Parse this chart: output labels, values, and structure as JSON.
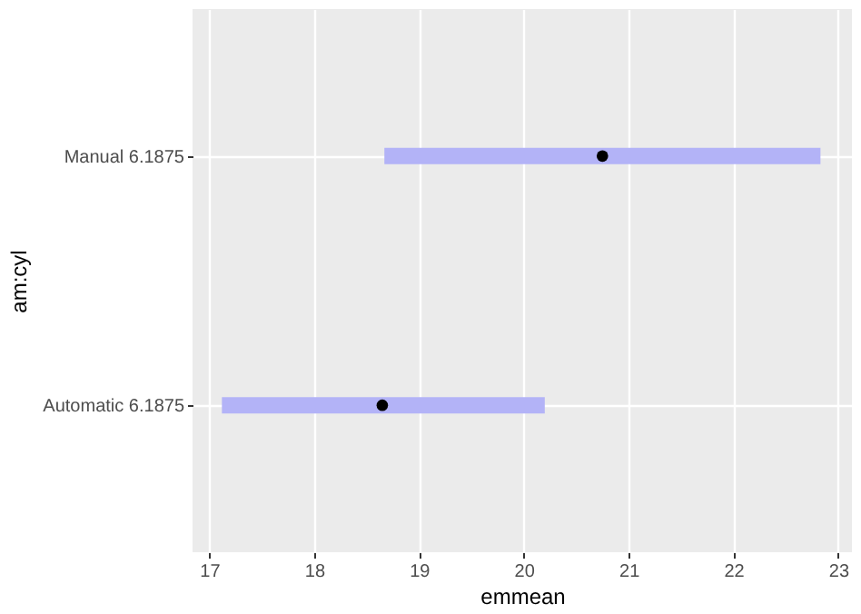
{
  "chart_data": {
    "type": "scatter",
    "orientation": "horizontal",
    "xlabel": "emmean",
    "ylabel": "am:cyl",
    "categories": [
      "Manual 6.1875",
      "Automatic 6.1875"
    ],
    "series": [
      {
        "color": "#000000",
        "values": [
          20.75,
          18.65
        ],
        "errors": [
          [
            18.67,
            22.83
          ],
          [
            17.12,
            20.2
          ]
        ]
      }
    ],
    "xlim": [
      16.84,
      23.13
    ],
    "xticks": [
      17,
      18,
      19,
      20,
      21,
      22,
      23
    ],
    "grid": true,
    "marker": "circle"
  }
}
